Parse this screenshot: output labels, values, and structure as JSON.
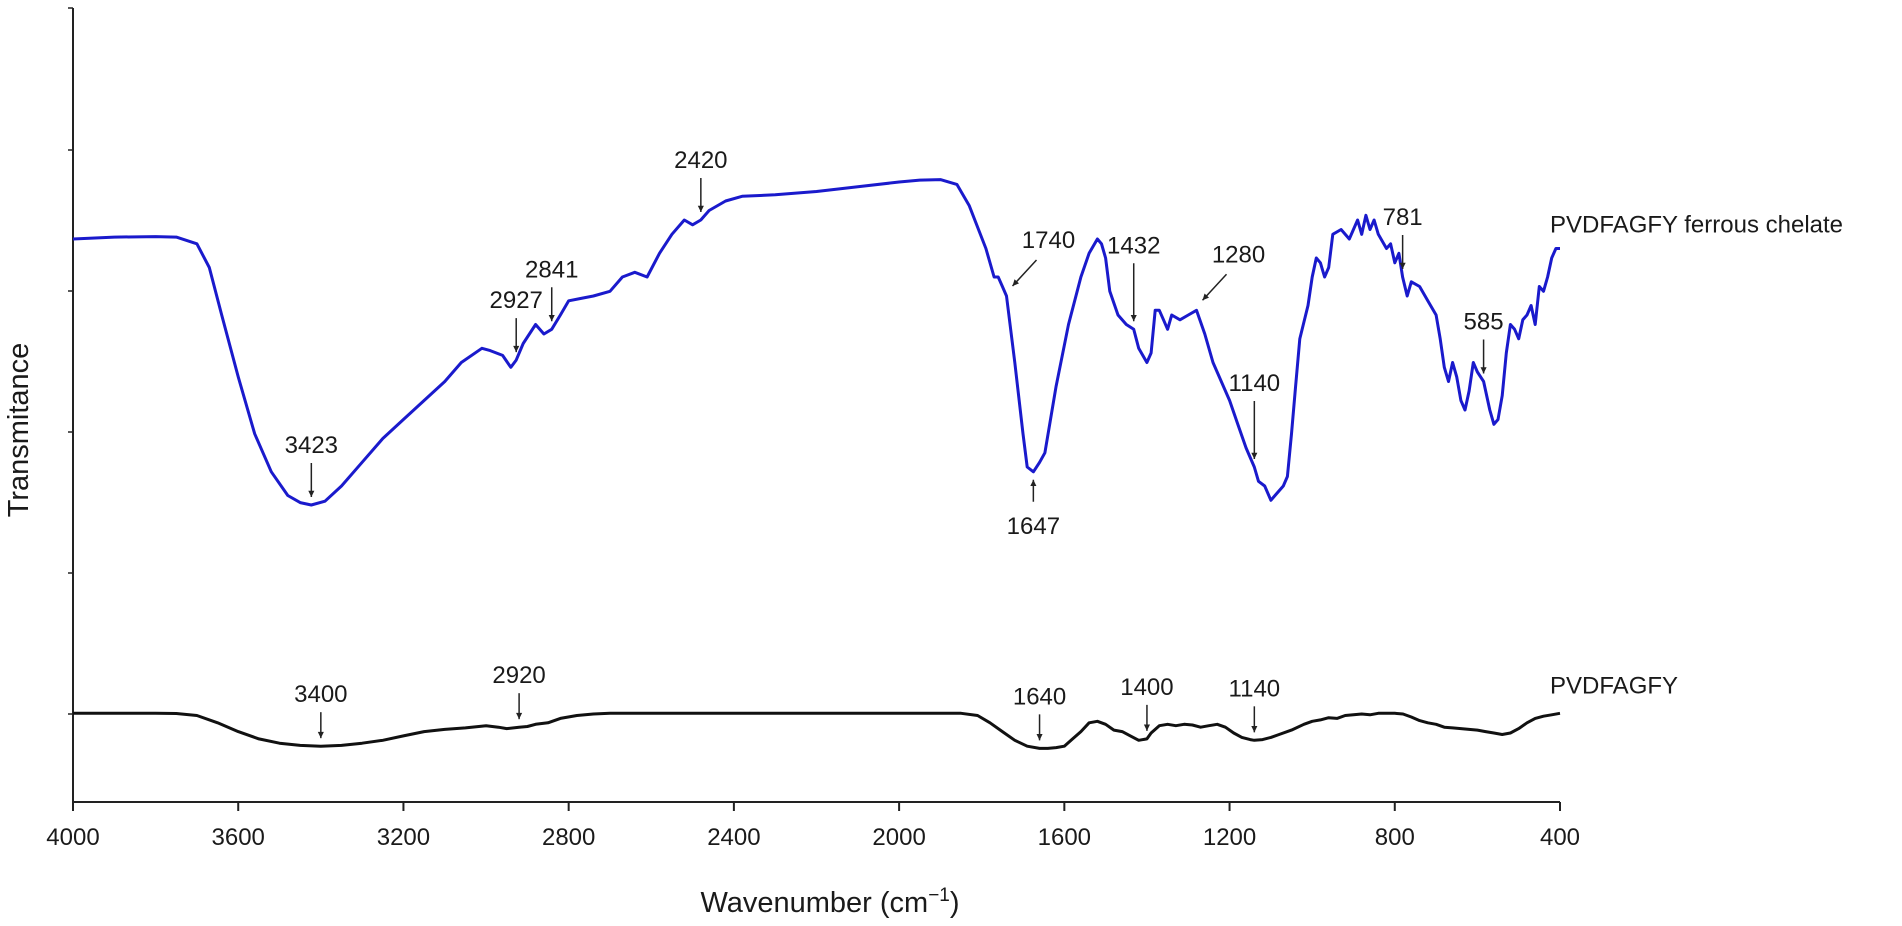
{
  "colors": {
    "ferrous_chelate": "#1a1acc",
    "pvdfagfy": "#111111",
    "axis": "#222222"
  },
  "chart_data": {
    "type": "line",
    "xlabel": "Wavenumber (cm",
    "xlabel_superscript": "−1",
    "xlabel_close": ")",
    "ylabel": "Transmitance",
    "xlim": [
      4000,
      400
    ],
    "x_reversed": true,
    "ylim": [
      0,
      100
    ],
    "y_tick_labels_shown": false,
    "grid": false,
    "legend": "series labels at right end of each curve",
    "x_ticks": [
      4000,
      3600,
      3200,
      2800,
      2400,
      2000,
      1600,
      1200,
      800,
      400
    ],
    "x_tick_labels": [
      "4000",
      "3600",
      "3200",
      "2800",
      "2400",
      "2000",
      "1600",
      "1200",
      "800",
      "400"
    ],
    "series": [
      {
        "name": "PVDFAGFY ferrous chelate",
        "color": "#1a1acc",
        "points": [
          [
            4000,
            76
          ],
          [
            3900,
            76.4
          ],
          [
            3800,
            76.5
          ],
          [
            3750,
            76.4
          ],
          [
            3700,
            75
          ],
          [
            3670,
            70
          ],
          [
            3640,
            60
          ],
          [
            3600,
            47
          ],
          [
            3560,
            35
          ],
          [
            3520,
            27
          ],
          [
            3480,
            22
          ],
          [
            3450,
            20.5
          ],
          [
            3423,
            20
          ],
          [
            3390,
            20.8
          ],
          [
            3350,
            24
          ],
          [
            3300,
            29
          ],
          [
            3250,
            34
          ],
          [
            3200,
            38
          ],
          [
            3150,
            42
          ],
          [
            3100,
            46
          ],
          [
            3060,
            50
          ],
          [
            3010,
            53
          ],
          [
            2990,
            52.5
          ],
          [
            2960,
            51.5
          ],
          [
            2940,
            49
          ],
          [
            2927,
            50.5
          ],
          [
            2910,
            54
          ],
          [
            2880,
            58
          ],
          [
            2860,
            56
          ],
          [
            2841,
            57
          ],
          [
            2820,
            60
          ],
          [
            2800,
            63
          ],
          [
            2770,
            63.5
          ],
          [
            2740,
            64
          ],
          [
            2700,
            65
          ],
          [
            2670,
            68
          ],
          [
            2640,
            69
          ],
          [
            2610,
            68
          ],
          [
            2580,
            73
          ],
          [
            2550,
            77
          ],
          [
            2520,
            80
          ],
          [
            2500,
            79
          ],
          [
            2480,
            80
          ],
          [
            2460,
            82
          ],
          [
            2420,
            84
          ],
          [
            2380,
            85
          ],
          [
            2300,
            85.3
          ],
          [
            2200,
            86
          ],
          [
            2100,
            87
          ],
          [
            2000,
            88
          ],
          [
            1950,
            88.4
          ],
          [
            1900,
            88.5
          ],
          [
            1860,
            87.5
          ],
          [
            1830,
            83
          ],
          [
            1790,
            74
          ],
          [
            1770,
            68
          ],
          [
            1760,
            68
          ],
          [
            1750,
            66
          ],
          [
            1740,
            64
          ],
          [
            1720,
            50
          ],
          [
            1700,
            35
          ],
          [
            1690,
            28
          ],
          [
            1675,
            27
          ],
          [
            1660,
            29
          ],
          [
            1647,
            31
          ],
          [
            1620,
            45
          ],
          [
            1590,
            58
          ],
          [
            1560,
            68
          ],
          [
            1540,
            73
          ],
          [
            1520,
            76
          ],
          [
            1510,
            75
          ],
          [
            1500,
            72
          ],
          [
            1490,
            65
          ],
          [
            1470,
            60
          ],
          [
            1450,
            58
          ],
          [
            1432,
            57
          ],
          [
            1420,
            53
          ],
          [
            1400,
            50
          ],
          [
            1390,
            52
          ],
          [
            1380,
            61
          ],
          [
            1370,
            61
          ],
          [
            1360,
            59
          ],
          [
            1350,
            57
          ],
          [
            1340,
            60
          ],
          [
            1320,
            59
          ],
          [
            1300,
            60
          ],
          [
            1280,
            61
          ],
          [
            1260,
            56
          ],
          [
            1240,
            50
          ],
          [
            1220,
            46
          ],
          [
            1200,
            42
          ],
          [
            1180,
            37
          ],
          [
            1160,
            32
          ],
          [
            1140,
            28
          ],
          [
            1130,
            25
          ],
          [
            1115,
            24
          ],
          [
            1100,
            21
          ],
          [
            1090,
            22
          ],
          [
            1070,
            24
          ],
          [
            1060,
            26
          ],
          [
            1050,
            35
          ],
          [
            1040,
            45
          ],
          [
            1030,
            55
          ],
          [
            1010,
            62
          ],
          [
            1000,
            68
          ],
          [
            990,
            72
          ],
          [
            980,
            71
          ],
          [
            970,
            68
          ],
          [
            960,
            70
          ],
          [
            950,
            77
          ],
          [
            930,
            78
          ],
          [
            910,
            76
          ],
          [
            890,
            80
          ],
          [
            880,
            77
          ],
          [
            870,
            81
          ],
          [
            860,
            78
          ],
          [
            850,
            80
          ],
          [
            840,
            77
          ],
          [
            820,
            74
          ],
          [
            810,
            75
          ],
          [
            800,
            71
          ],
          [
            790,
            73
          ],
          [
            781,
            68
          ],
          [
            770,
            64
          ],
          [
            760,
            67
          ],
          [
            740,
            66
          ],
          [
            720,
            63
          ],
          [
            700,
            60
          ],
          [
            690,
            55
          ],
          [
            680,
            49
          ],
          [
            670,
            46
          ],
          [
            660,
            50
          ],
          [
            650,
            47
          ],
          [
            640,
            42
          ],
          [
            630,
            40
          ],
          [
            620,
            44
          ],
          [
            610,
            50
          ],
          [
            600,
            48
          ],
          [
            585,
            46
          ],
          [
            570,
            40
          ],
          [
            560,
            37
          ],
          [
            550,
            38
          ],
          [
            540,
            43
          ],
          [
            530,
            52
          ],
          [
            520,
            58
          ],
          [
            510,
            57
          ],
          [
            500,
            55
          ],
          [
            490,
            59
          ],
          [
            480,
            60
          ],
          [
            470,
            62
          ],
          [
            460,
            58
          ],
          [
            450,
            66
          ],
          [
            440,
            65
          ],
          [
            430,
            68
          ],
          [
            420,
            72
          ],
          [
            410,
            74
          ],
          [
            400,
            74
          ]
        ]
      },
      {
        "name": "PVDFAGFY",
        "color": "#111111",
        "points": [
          [
            4000,
            26.5
          ],
          [
            3900,
            26.5
          ],
          [
            3800,
            26.5
          ],
          [
            3750,
            26.4
          ],
          [
            3700,
            25
          ],
          [
            3650,
            20
          ],
          [
            3600,
            14
          ],
          [
            3550,
            9
          ],
          [
            3500,
            6
          ],
          [
            3450,
            4.5
          ],
          [
            3400,
            4
          ],
          [
            3350,
            4.5
          ],
          [
            3300,
            6
          ],
          [
            3250,
            8
          ],
          [
            3200,
            11
          ],
          [
            3150,
            14
          ],
          [
            3100,
            15.5
          ],
          [
            3050,
            16.5
          ],
          [
            3000,
            18
          ],
          [
            2970,
            17
          ],
          [
            2950,
            16
          ],
          [
            2920,
            17
          ],
          [
            2900,
            17.5
          ],
          [
            2880,
            19
          ],
          [
            2850,
            20
          ],
          [
            2820,
            23
          ],
          [
            2780,
            25
          ],
          [
            2740,
            26
          ],
          [
            2700,
            26.5
          ],
          [
            2500,
            26.5
          ],
          [
            2300,
            26.5
          ],
          [
            2100,
            26.5
          ],
          [
            2000,
            26.5
          ],
          [
            1900,
            26.5
          ],
          [
            1850,
            26.5
          ],
          [
            1810,
            25
          ],
          [
            1780,
            20
          ],
          [
            1750,
            14
          ],
          [
            1720,
            8
          ],
          [
            1690,
            4
          ],
          [
            1660,
            2.5
          ],
          [
            1640,
            2.5
          ],
          [
            1620,
            3
          ],
          [
            1600,
            4
          ],
          [
            1580,
            9
          ],
          [
            1560,
            14
          ],
          [
            1540,
            20
          ],
          [
            1520,
            21
          ],
          [
            1500,
            19
          ],
          [
            1480,
            15
          ],
          [
            1460,
            14
          ],
          [
            1440,
            11
          ],
          [
            1420,
            8
          ],
          [
            1400,
            9
          ],
          [
            1390,
            13
          ],
          [
            1370,
            18
          ],
          [
            1350,
            19
          ],
          [
            1330,
            18
          ],
          [
            1310,
            19
          ],
          [
            1290,
            18.5
          ],
          [
            1270,
            17
          ],
          [
            1250,
            18
          ],
          [
            1230,
            19
          ],
          [
            1210,
            17
          ],
          [
            1190,
            13
          ],
          [
            1170,
            10
          ],
          [
            1150,
            8.5
          ],
          [
            1140,
            8
          ],
          [
            1120,
            8.5
          ],
          [
            1100,
            10
          ],
          [
            1080,
            12
          ],
          [
            1050,
            15
          ],
          [
            1020,
            19
          ],
          [
            1000,
            21
          ],
          [
            980,
            22
          ],
          [
            960,
            23.5
          ],
          [
            940,
            23
          ],
          [
            920,
            25
          ],
          [
            900,
            25.5
          ],
          [
            880,
            26
          ],
          [
            860,
            25.5
          ],
          [
            840,
            26.5
          ],
          [
            800,
            26.5
          ],
          [
            780,
            26
          ],
          [
            760,
            24
          ],
          [
            740,
            21.5
          ],
          [
            720,
            20
          ],
          [
            700,
            19
          ],
          [
            680,
            17
          ],
          [
            660,
            16.5
          ],
          [
            640,
            16
          ],
          [
            620,
            15.5
          ],
          [
            600,
            15
          ],
          [
            580,
            14
          ],
          [
            560,
            13
          ],
          [
            540,
            12
          ],
          [
            520,
            13
          ],
          [
            500,
            16
          ],
          [
            480,
            20
          ],
          [
            460,
            23
          ],
          [
            440,
            24.5
          ],
          [
            420,
            25.5
          ],
          [
            400,
            26.5
          ]
        ]
      }
    ],
    "annotations": [
      {
        "text": "3423",
        "series": 0,
        "x": 3423,
        "arrow": "down",
        "side": "above"
      },
      {
        "text": "2927",
        "series": 0,
        "x": 2927,
        "arrow": "down",
        "side": "above"
      },
      {
        "text": "2841",
        "series": 0,
        "x": 2841,
        "arrow": "down",
        "side": "above"
      },
      {
        "text": "2420",
        "series": 0,
        "x": 2480,
        "arrow": "down",
        "side": "above"
      },
      {
        "text": "1740",
        "series": 0,
        "x": 1740,
        "arrow": "diagonal",
        "side": "above"
      },
      {
        "text": "1432",
        "series": 0,
        "x": 1432,
        "arrow": "down",
        "side": "above"
      },
      {
        "text": "1280",
        "series": 0,
        "x": 1280,
        "arrow": "diagonal",
        "side": "above"
      },
      {
        "text": "1647",
        "series": 0,
        "x": 1675,
        "arrow": "up",
        "side": "below"
      },
      {
        "text": "1140",
        "series": 0,
        "x": 1140,
        "arrow": "down",
        "side": "above"
      },
      {
        "text": "781",
        "series": 0,
        "x": 781,
        "arrow": "down",
        "side": "above"
      },
      {
        "text": "585",
        "series": 0,
        "x": 585,
        "arrow": "down",
        "side": "above"
      },
      {
        "text": "3400",
        "series": 1,
        "x": 3400,
        "arrow": "down",
        "side": "above"
      },
      {
        "text": "2920",
        "series": 1,
        "x": 2920,
        "arrow": "down",
        "side": "above"
      },
      {
        "text": "1640",
        "series": 1,
        "x": 1660,
        "arrow": "down",
        "side": "above"
      },
      {
        "text": "1400",
        "series": 1,
        "x": 1400,
        "arrow": "down",
        "side": "above"
      },
      {
        "text": "1140",
        "series": 1,
        "x": 1140,
        "arrow": "down",
        "side": "above"
      }
    ]
  }
}
